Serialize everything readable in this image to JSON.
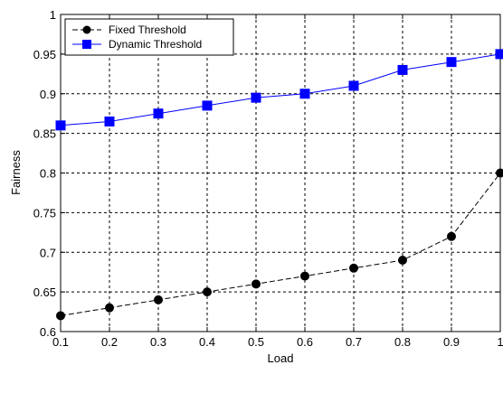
{
  "chart_data": {
    "type": "line",
    "xlabel": "Load",
    "ylabel": "Fairness",
    "xlim": [
      0.1,
      1
    ],
    "ylim": [
      0.6,
      1
    ],
    "x_ticks": [
      "0.1",
      "0.2",
      "0.3",
      "0.4",
      "0.5",
      "0.6",
      "0.7",
      "0.8",
      "0.9",
      "1"
    ],
    "y_ticks": [
      "0.6",
      "0.65",
      "0.7",
      "0.75",
      "0.8",
      "0.85",
      "0.9",
      "0.95",
      "1"
    ],
    "grid": true,
    "legend_position": "top-left",
    "x": [
      0.1,
      0.2,
      0.3,
      0.4,
      0.5,
      0.6,
      0.7,
      0.8,
      0.9,
      1.0
    ],
    "series": [
      {
        "name": "Fixed Threshold",
        "color": "#000000",
        "marker": "circle",
        "line_style": "dashed",
        "values": [
          0.62,
          0.63,
          0.64,
          0.65,
          0.66,
          0.67,
          0.68,
          0.69,
          0.72,
          0.8
        ]
      },
      {
        "name": "Dynamic Threshold",
        "color": "#0000ff",
        "marker": "square",
        "line_style": "solid",
        "values": [
          0.86,
          0.865,
          0.875,
          0.885,
          0.895,
          0.9,
          0.91,
          0.93,
          0.94,
          0.95
        ]
      }
    ]
  }
}
